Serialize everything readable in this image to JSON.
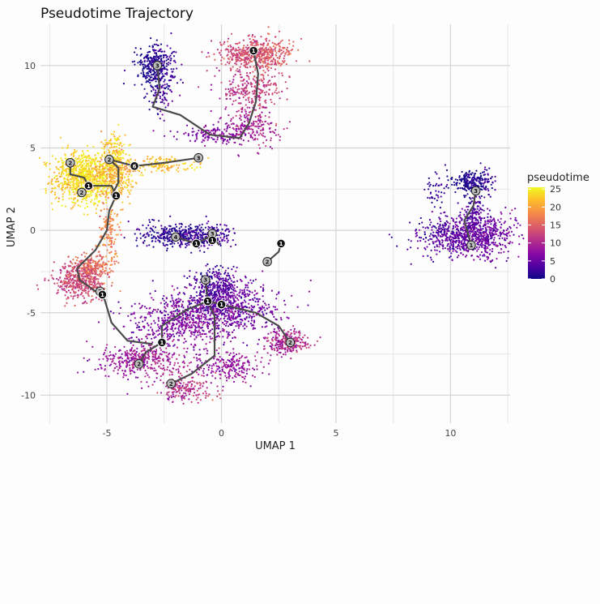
{
  "chart_data": {
    "type": "scatter",
    "title": "Pseudotime Trajectory",
    "xlabel": "UMAP 1",
    "ylabel": "UMAP 2",
    "xlim": [
      -7.9,
      12.6
    ],
    "ylim": [
      -11.7,
      12.5
    ],
    "x_ticks": [
      -5,
      0,
      5,
      10
    ],
    "y_ticks": [
      -10,
      -5,
      0,
      5,
      10
    ],
    "x_tick_labels": [
      "-5",
      "0",
      "5",
      "10"
    ],
    "y_tick_labels": [
      "-10",
      "-5",
      "0",
      "5",
      "10"
    ],
    "grid": true,
    "legend": {
      "title": "pseudotime",
      "position": "right",
      "min": 0,
      "max": 25.5,
      "ticks": [
        0,
        5,
        10,
        15,
        20,
        25
      ],
      "tick_labels": [
        "0",
        "5",
        "10",
        "15",
        "20",
        "25"
      ]
    },
    "colormap": [
      "#0d0887",
      "#5302a3",
      "#8b0aa5",
      "#b83289",
      "#db5c68",
      "#f48849",
      "#febd2a",
      "#f0f921"
    ],
    "clusters": [
      {
        "cx": -6.0,
        "cy": 3.2,
        "sx": 0.75,
        "sy": 0.9,
        "n": 900,
        "pt": 24
      },
      {
        "cx": -4.6,
        "cy": 3.4,
        "sx": 0.45,
        "sy": 0.8,
        "n": 300,
        "pt": 21
      },
      {
        "cx": -4.7,
        "cy": 5.0,
        "sx": 0.3,
        "sy": 0.6,
        "n": 100,
        "pt": 23
      },
      {
        "cx": -2.5,
        "cy": 4.0,
        "sx": 0.9,
        "sy": 0.3,
        "n": 130,
        "pt": 22
      },
      {
        "cx": -4.9,
        "cy": 0.0,
        "sx": 0.25,
        "sy": 0.9,
        "n": 130,
        "pt": 18
      },
      {
        "cx": -5.6,
        "cy": -2.3,
        "sx": 0.55,
        "sy": 0.5,
        "n": 220,
        "pt": 16
      },
      {
        "cx": -6.2,
        "cy": -3.1,
        "sx": 0.6,
        "sy": 0.55,
        "n": 420,
        "pt": 13
      },
      {
        "cx": -2.8,
        "cy": 9.9,
        "sx": 0.45,
        "sy": 0.75,
        "n": 380,
        "pt": 1
      },
      {
        "cx": -2.7,
        "cy": 8.0,
        "sx": 0.3,
        "sy": 0.6,
        "n": 60,
        "pt": 3
      },
      {
        "cx": 1.5,
        "cy": 10.7,
        "sx": 0.85,
        "sy": 0.55,
        "n": 520,
        "pt": 14
      },
      {
        "cx": 1.3,
        "cy": 8.5,
        "sx": 0.8,
        "sy": 0.7,
        "n": 260,
        "pt": 12
      },
      {
        "cx": 1.2,
        "cy": 6.2,
        "sx": 0.7,
        "sy": 0.6,
        "n": 220,
        "pt": 9
      },
      {
        "cx": -0.5,
        "cy": 5.8,
        "sx": 0.8,
        "sy": 0.3,
        "n": 120,
        "pt": 7
      },
      {
        "cx": -1.5,
        "cy": -0.3,
        "sx": 1.1,
        "sy": 0.4,
        "n": 500,
        "pt": 2
      },
      {
        "cx": -0.2,
        "cy": -3.6,
        "sx": 0.5,
        "sy": 0.8,
        "n": 320,
        "pt": 3
      },
      {
        "cx": 0.2,
        "cy": -4.6,
        "sx": 1.3,
        "sy": 0.9,
        "n": 700,
        "pt": 5
      },
      {
        "cx": -1.8,
        "cy": -5.6,
        "sx": 1.3,
        "sy": 0.8,
        "n": 520,
        "pt": 7
      },
      {
        "cx": 2.9,
        "cy": -6.8,
        "sx": 0.5,
        "sy": 0.4,
        "n": 260,
        "pt": 10
      },
      {
        "cx": -3.5,
        "cy": -7.8,
        "sx": 1.1,
        "sy": 0.5,
        "n": 400,
        "pt": 9
      },
      {
        "cx": -1.6,
        "cy": -9.6,
        "sx": 0.7,
        "sy": 0.5,
        "n": 180,
        "pt": 11
      },
      {
        "cx": 0.3,
        "cy": -8.2,
        "sx": 0.8,
        "sy": 0.5,
        "n": 220,
        "pt": 8
      },
      {
        "cx": 10.8,
        "cy": -0.3,
        "sx": 1.1,
        "sy": 0.7,
        "n": 900,
        "pt": 5
      },
      {
        "cx": 11.0,
        "cy": 2.9,
        "sx": 0.5,
        "sy": 0.4,
        "n": 260,
        "pt": 1
      },
      {
        "cx": 11.0,
        "cy": 1.2,
        "sx": 0.3,
        "sy": 0.5,
        "n": 80,
        "pt": 3
      },
      {
        "cx": 9.2,
        "cy": 2.3,
        "sx": 0.3,
        "sy": 0.6,
        "n": 40,
        "pt": 2
      }
    ],
    "trajectory_segments": [
      [
        [
          -6.6,
          4.1
        ],
        [
          -6.6,
          3.4
        ],
        [
          -6.0,
          3.2
        ],
        [
          -5.8,
          2.7
        ]
      ],
      [
        [
          -5.8,
          2.7
        ],
        [
          -6.1,
          2.3
        ]
      ],
      [
        [
          -5.8,
          2.7
        ],
        [
          -4.8,
          2.7
        ],
        [
          -4.6,
          2.1
        ],
        [
          -4.9,
          1.2
        ],
        [
          -5.0,
          0.0
        ],
        [
          -5.5,
          -1.2
        ],
        [
          -6.3,
          -2.3
        ],
        [
          -6.2,
          -3.0
        ],
        [
          -5.4,
          -3.8
        ]
      ],
      [
        [
          -4.8,
          2.1
        ],
        [
          -4.5,
          2.9
        ],
        [
          -4.5,
          3.8
        ],
        [
          -4.9,
          4.3
        ]
      ],
      [
        [
          -4.9,
          4.3
        ],
        [
          -3.8,
          3.9
        ],
        [
          -2.5,
          4.1
        ],
        [
          -1.0,
          4.4
        ]
      ],
      [
        [
          -2.8,
          10.0
        ],
        [
          -2.7,
          8.6
        ],
        [
          -3.0,
          7.5
        ],
        [
          -1.8,
          7.0
        ],
        [
          -0.5,
          5.8
        ],
        [
          0.8,
          5.6
        ],
        [
          1.2,
          6.5
        ],
        [
          1.5,
          7.8
        ],
        [
          1.6,
          9.5
        ],
        [
          1.4,
          10.9
        ]
      ],
      [
        [
          -2.0,
          -0.4
        ],
        [
          -1.1,
          -0.8
        ],
        [
          -0.4,
          -0.3
        ],
        [
          -0.1,
          -0.9
        ]
      ],
      [
        [
          -0.7,
          -3.0
        ],
        [
          -0.6,
          -4.3
        ],
        [
          0.0,
          -4.5
        ],
        [
          1.5,
          -5.0
        ],
        [
          2.5,
          -5.8
        ],
        [
          3.0,
          -6.8
        ]
      ],
      [
        [
          -0.6,
          -4.3
        ],
        [
          -1.5,
          -4.8
        ],
        [
          -2.6,
          -5.8
        ],
        [
          -2.6,
          -6.8
        ],
        [
          -3.3,
          -7.4
        ],
        [
          -3.6,
          -8.1
        ]
      ],
      [
        [
          -0.6,
          -4.3
        ],
        [
          -0.3,
          -5.2
        ],
        [
          -0.3,
          -7.6
        ],
        [
          -1.3,
          -8.7
        ],
        [
          -2.2,
          -9.3
        ]
      ],
      [
        [
          2.0,
          -1.9
        ],
        [
          2.5,
          -1.3
        ],
        [
          2.6,
          -0.8
        ]
      ],
      [
        [
          11.1,
          2.4
        ],
        [
          11.0,
          1.5
        ],
        [
          10.6,
          0.6
        ],
        [
          10.9,
          -0.9
        ]
      ],
      [
        [
          -5.4,
          -3.8
        ],
        [
          -5.1,
          -4.2
        ],
        [
          -4.8,
          -5.6
        ],
        [
          -4.1,
          -6.7
        ],
        [
          -3.0,
          -6.9
        ]
      ]
    ],
    "nodes": [
      {
        "label": "2",
        "x": -6.6,
        "y": 4.1,
        "style": "light"
      },
      {
        "label": "1",
        "x": -5.8,
        "y": 2.7,
        "style": "dark"
      },
      {
        "label": "2",
        "x": -6.1,
        "y": 2.3,
        "style": "light"
      },
      {
        "label": "1",
        "x": -4.6,
        "y": 2.1,
        "style": "dark"
      },
      {
        "label": "2",
        "x": -4.9,
        "y": 4.3,
        "style": "light"
      },
      {
        "label": "6",
        "x": -3.8,
        "y": 3.9,
        "style": "dark"
      },
      {
        "label": "3",
        "x": -1.0,
        "y": 4.4,
        "style": "light"
      },
      {
        "label": "3",
        "x": -2.8,
        "y": 10.0,
        "style": "light"
      },
      {
        "label": "1",
        "x": 1.4,
        "y": 10.9,
        "style": "dark"
      },
      {
        "label": "4",
        "x": -2.0,
        "y": -0.4,
        "style": "light"
      },
      {
        "label": "1",
        "x": -1.1,
        "y": -0.8,
        "style": "dark"
      },
      {
        "label": "3",
        "x": -0.4,
        "y": -0.2,
        "style": "light"
      },
      {
        "label": "1",
        "x": -0.4,
        "y": -0.6,
        "style": "dark"
      },
      {
        "label": "3",
        "x": -0.7,
        "y": -3.0,
        "style": "light"
      },
      {
        "label": "1",
        "x": -0.6,
        "y": -4.3,
        "style": "dark"
      },
      {
        "label": "1",
        "x": 0.0,
        "y": -4.5,
        "style": "dark"
      },
      {
        "label": "2",
        "x": 3.0,
        "y": -6.8,
        "style": "light"
      },
      {
        "label": "1",
        "x": -2.6,
        "y": -6.8,
        "style": "dark"
      },
      {
        "label": "2",
        "x": -3.6,
        "y": -8.1,
        "style": "light"
      },
      {
        "label": "2",
        "x": -2.2,
        "y": -9.3,
        "style": "light"
      },
      {
        "label": "2",
        "x": -5.3,
        "y": -3.7,
        "style": "light"
      },
      {
        "label": "1",
        "x": -5.2,
        "y": -3.9,
        "style": "dark"
      },
      {
        "label": "1",
        "x": 2.6,
        "y": -0.8,
        "style": "dark"
      },
      {
        "label": "2",
        "x": 2.0,
        "y": -1.9,
        "style": "light"
      },
      {
        "label": "3",
        "x": 11.1,
        "y": 2.4,
        "style": "light"
      },
      {
        "label": "1",
        "x": 10.9,
        "y": -0.9,
        "style": "light"
      }
    ]
  }
}
